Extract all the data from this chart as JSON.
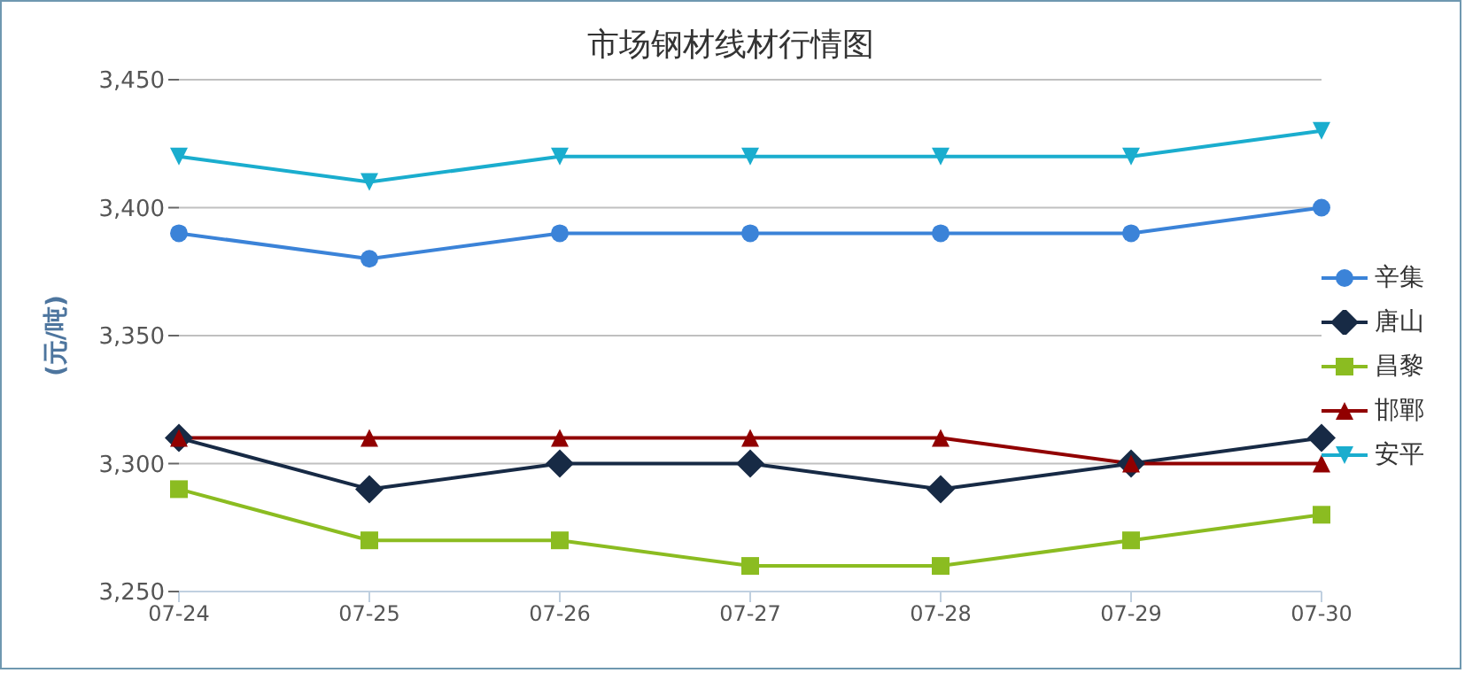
{
  "chart_data": {
    "type": "line",
    "title": "市场钢材线材行情图",
    "ylabel": "(元/吨)",
    "categories": [
      "07-24",
      "07-25",
      "07-26",
      "07-27",
      "07-28",
      "07-29",
      "07-30"
    ],
    "series": [
      {
        "name": "辛集",
        "color": "#3b83d8",
        "marker": "circle",
        "values": [
          3390,
          3380,
          3390,
          3390,
          3390,
          3390,
          3400
        ]
      },
      {
        "name": "唐山",
        "color": "#172a45",
        "marker": "diamond",
        "values": [
          3310,
          3290,
          3300,
          3300,
          3290,
          3300,
          3310
        ]
      },
      {
        "name": "昌黎",
        "color": "#8bbc21",
        "marker": "square",
        "values": [
          3290,
          3270,
          3270,
          3260,
          3260,
          3270,
          3280
        ]
      },
      {
        "name": "邯鄲",
        "color": "#910000",
        "marker": "triangle",
        "values": [
          3310,
          3310,
          3310,
          3310,
          3310,
          3300,
          3300
        ]
      },
      {
        "name": "安平",
        "color": "#1aadce",
        "marker": "triangle-down",
        "values": [
          3420,
          3410,
          3420,
          3420,
          3420,
          3420,
          3430
        ]
      }
    ],
    "ylim": [
      3250,
      3450
    ],
    "yticks": [
      {
        "value": 3250,
        "label": "3,250"
      },
      {
        "value": 3300,
        "label": "3,300"
      },
      {
        "value": 3350,
        "label": "3,350"
      },
      {
        "value": 3400,
        "label": "3,400"
      },
      {
        "value": 3450,
        "label": "3,450"
      }
    ],
    "grid": "y",
    "legend": "right"
  }
}
